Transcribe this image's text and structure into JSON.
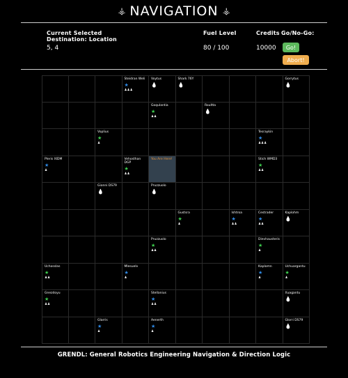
{
  "header": {
    "title": "NAVIGATION",
    "left_decoration": "⚶",
    "right_decoration": "⚶"
  },
  "status": {
    "destination_label": "Current Selected Destination: Location",
    "destination_value": "5, 4",
    "fuel_label": "Fuel Level",
    "fuel_value": "80 / 100",
    "credits_label": "Credits",
    "credits_value": "10000",
    "gonogo_label": "Go/No-Go:",
    "go_button": "Go!",
    "abort_button": "Abort!"
  },
  "colors": {
    "green_star": "#3ecf4f",
    "blue_star": "#2f8ae6",
    "go": "#5cb85c",
    "abort": "#f0ad4e",
    "selected_bg": "#33414e",
    "selected_text": "#e69138"
  },
  "grid": {
    "rows": [
      [
        {},
        {},
        {},
        {
          "name": "Steidran Weli",
          "icon": "star-blue",
          "people": 3
        },
        {
          "name": "Voytus",
          "icon": "drop",
          "people": 0
        },
        {
          "name": "Shark 76Y",
          "icon": "drop",
          "people": 0
        },
        {},
        {},
        {},
        {
          "name": "Gorrytus",
          "icon": "drop",
          "people": 0
        }
      ],
      [
        {},
        {},
        {},
        {},
        {
          "name": "Goqulantia",
          "icon": "star-green",
          "people": 2
        },
        {},
        {
          "name": "Roultta",
          "icon": "drop",
          "people": 0
        },
        {},
        {},
        {}
      ],
      [
        {},
        {},
        {
          "name": "Voplius",
          "icon": "star-green",
          "people": 1
        },
        {},
        {},
        {},
        {},
        {},
        {
          "name": "Tesraykin",
          "icon": "star-blue",
          "people": 3
        },
        {}
      ],
      [
        {
          "name": "Pleris XIDM",
          "icon": "star-blue",
          "people": 1
        },
        {},
        {},
        {
          "name": "Vehosthan DGP",
          "icon": "star-green",
          "people": 2
        },
        {
          "name": "You Are Here!",
          "icon": "",
          "people": 0,
          "selected": true
        },
        {},
        {},
        {},
        {
          "name": "Stich WMD3",
          "icon": "star-green",
          "people": 2
        },
        {}
      ],
      [
        {},
        {},
        {
          "name": "Gionni DS79",
          "icon": "drop",
          "people": 0
        },
        {},
        {
          "name": "Pruzzuolo",
          "icon": "drop",
          "people": 0
        },
        {},
        {},
        {},
        {},
        {}
      ],
      [
        {},
        {},
        {},
        {},
        {},
        {
          "name": "Gustsra",
          "icon": "star-green",
          "people": 1
        },
        {},
        {
          "name": "Ishtroa",
          "icon": "star-blue",
          "people": 2
        },
        {
          "name": "Cestrader",
          "icon": "star-blue",
          "people": 2
        },
        {
          "name": "Kaplohm",
          "icon": "drop",
          "people": 0
        }
      ],
      [
        {},
        {},
        {},
        {},
        {
          "name": "Pruzzuolo",
          "icon": "star-green",
          "people": 2
        },
        {},
        {},
        {},
        {
          "name": "Dievhausteris",
          "icon": "star-green",
          "people": 1
        },
        {}
      ],
      [
        {
          "name": "Uchosslas",
          "icon": "star-green",
          "people": 2
        },
        {},
        {},
        {
          "name": "Mlesuelv",
          "icon": "star-blue",
          "people": 1
        },
        {},
        {},
        {},
        {},
        {
          "name": "Kaplomn",
          "icon": "star-blue",
          "people": 1
        },
        {
          "name": "Uchuargantu",
          "icon": "star-green",
          "people": 1
        }
      ],
      [
        {
          "name": "Gnezdoyu",
          "icon": "star-green",
          "people": 2
        },
        {},
        {},
        {},
        {
          "name": "Stellanius",
          "icon": "star-blue",
          "people": 2
        },
        {},
        {},
        {},
        {},
        {
          "name": "Xuagantu",
          "icon": "drop",
          "people": 0
        }
      ],
      [
        {},
        {},
        {
          "name": "Glarris",
          "icon": "star-blue",
          "people": 1
        },
        {},
        {
          "name": "Aenerth",
          "icon": "star-blue",
          "people": 1
        },
        {},
        {},
        {},
        {},
        {
          "name": "Glorri DS79",
          "icon": "drop",
          "people": 0
        }
      ]
    ]
  },
  "footer": {
    "text": "GRENDL: General Robotics Engineering Navigation & Direction Logic"
  }
}
